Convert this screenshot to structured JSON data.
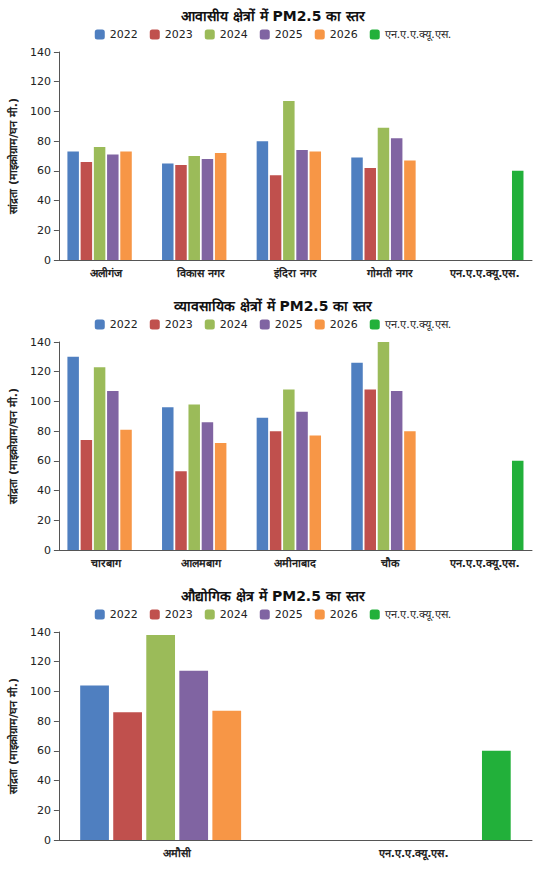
{
  "chart_data": [
    {
      "type": "bar",
      "title": "आवासीय क्षेत्रों में PM2.5 का स्तर",
      "y_label": "सांद्रता (माइक्रोग्राम/घन मी.)",
      "categories": [
        "अलीगंज",
        "विकास नगर",
        "इंदिरा नगर",
        "गोमती नगर",
        "एन.ए.ए.क्यू.एस."
      ],
      "series": [
        {
          "name": "2022",
          "color": "#4f7fc0",
          "values": [
            73,
            65,
            80,
            69,
            null
          ]
        },
        {
          "name": "2023",
          "color": "#c0504d",
          "values": [
            66,
            64,
            57,
            62,
            null
          ]
        },
        {
          "name": "2024",
          "color": "#9bbb59",
          "values": [
            76,
            70,
            107,
            89,
            null
          ]
        },
        {
          "name": "2025",
          "color": "#8064a2",
          "values": [
            71,
            68,
            74,
            82,
            null
          ]
        },
        {
          "name": "2026",
          "color": "#f79646",
          "values": [
            73,
            72,
            73,
            67,
            null
          ]
        },
        {
          "name": "एन.ए.ए.क्यू.एस.",
          "color": "#22b03a",
          "values": [
            null,
            null,
            null,
            null,
            60
          ]
        }
      ],
      "ylim": [
        0,
        140
      ],
      "yticks": [
        0,
        20,
        40,
        60,
        80,
        100,
        120,
        140
      ],
      "legend": "top",
      "grid": false
    },
    {
      "type": "bar",
      "title": "व्यावसायिक क्षेत्रों में PM2.5 का स्तर",
      "y_label": "सांद्रता (माइक्रोग्राम/घन मी.)",
      "categories": [
        "चारबाग",
        "आलमबाग",
        "अमीनाबाद",
        "चौक",
        "एन.ए.ए.क्यू.एस."
      ],
      "series": [
        {
          "name": "2022",
          "color": "#4f7fc0",
          "values": [
            130,
            96,
            89,
            126,
            null
          ]
        },
        {
          "name": "2023",
          "color": "#c0504d",
          "values": [
            74,
            53,
            80,
            108,
            null
          ]
        },
        {
          "name": "2024",
          "color": "#9bbb59",
          "values": [
            123,
            98,
            108,
            140,
            null
          ]
        },
        {
          "name": "2025",
          "color": "#8064a2",
          "values": [
            107,
            86,
            93,
            107,
            null
          ]
        },
        {
          "name": "2026",
          "color": "#f79646",
          "values": [
            81,
            72,
            77,
            80,
            null
          ]
        },
        {
          "name": "एन.ए.ए.क्यू.एस.",
          "color": "#22b03a",
          "values": [
            null,
            null,
            null,
            null,
            60
          ]
        }
      ],
      "ylim": [
        0,
        140
      ],
      "yticks": [
        0,
        20,
        40,
        60,
        80,
        100,
        120,
        140
      ],
      "legend": "top",
      "grid": false
    },
    {
      "type": "bar",
      "title": "औद्योगिक क्षेत्र में PM2.5 का स्तर",
      "y_label": "सांद्रता (माइक्रोग्राम/घन मी.)",
      "categories": [
        "अमौसी",
        "एन.ए.ए.क्यू.एस."
      ],
      "series": [
        {
          "name": "2022",
          "color": "#4f7fc0",
          "values": [
            104,
            null
          ]
        },
        {
          "name": "2023",
          "color": "#c0504d",
          "values": [
            86,
            null
          ]
        },
        {
          "name": "2024",
          "color": "#9bbb59",
          "values": [
            138,
            null
          ]
        },
        {
          "name": "2025",
          "color": "#8064a2",
          "values": [
            114,
            null
          ]
        },
        {
          "name": "2026",
          "color": "#f79646",
          "values": [
            87,
            null
          ]
        },
        {
          "name": "एन.ए.ए.क्यू.एस.",
          "color": "#22b03a",
          "values": [
            null,
            60
          ]
        }
      ],
      "ylim": [
        0,
        140
      ],
      "yticks": [
        0,
        20,
        40,
        60,
        80,
        100,
        120,
        140
      ],
      "legend": "top",
      "grid": false
    }
  ]
}
